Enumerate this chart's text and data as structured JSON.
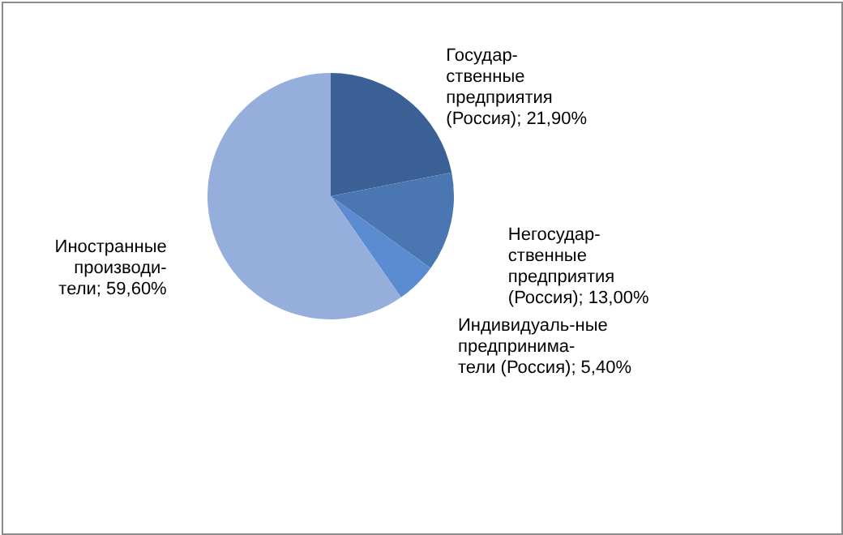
{
  "chart_data": {
    "type": "pie",
    "categories": [
      "Государ-\nственные\nпредприятия\n(Россия)",
      "Негосудар-\nственные\nпредприятия\n(Россия)",
      "Индивидуаль-ные\nпредпринима-\nтели (Россия)",
      "Иностранные\nпроизводи-\nтели"
    ],
    "values": [
      21.9,
      13.0,
      5.4,
      59.6
    ],
    "value_labels": [
      "21,90%",
      "13,00%",
      "5,40%",
      "59,60%"
    ],
    "colors": [
      "#3a6096",
      "#4a77b1",
      "#5b8bd0",
      "#95aedb"
    ]
  }
}
